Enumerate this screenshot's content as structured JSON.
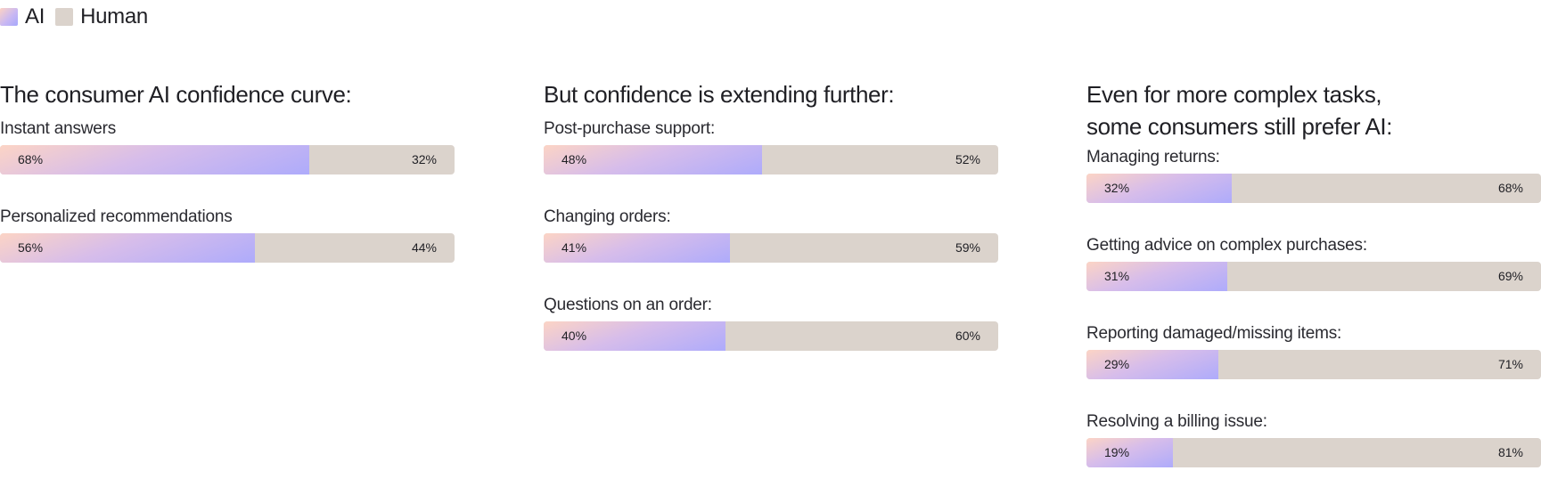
{
  "legend": {
    "ai_label": "AI",
    "human_label": "Human",
    "ai_color": "#b5aaf7",
    "human_color": "#dbd3cc"
  },
  "chart_data": [
    {
      "type": "bar",
      "title": "The consumer AI confidence curve:",
      "categories": [
        "Instant answers",
        "Personalized recommendations"
      ],
      "series": [
        {
          "name": "AI",
          "values": [
            68,
            56
          ],
          "labels": [
            "68%",
            "56%"
          ]
        },
        {
          "name": "Human",
          "values": [
            32,
            44
          ],
          "labels": [
            "32%",
            "44%"
          ]
        }
      ],
      "ylim": [
        0,
        100
      ]
    },
    {
      "type": "bar",
      "title": "But confidence is extending further:",
      "categories": [
        "Post-purchase support:",
        "Changing orders:",
        "Questions on an order:"
      ],
      "series": [
        {
          "name": "AI",
          "values": [
            48,
            41,
            40
          ],
          "labels": [
            "48%",
            "41%",
            "40%"
          ]
        },
        {
          "name": "Human",
          "values": [
            52,
            59,
            60
          ],
          "labels": [
            "52%",
            "59%",
            "60%"
          ]
        }
      ],
      "ylim": [
        0,
        100
      ]
    },
    {
      "type": "bar",
      "title": "Even for more complex tasks,\nsome consumers still prefer AI:",
      "categories": [
        "Managing returns:",
        "Getting advice on complex purchases:",
        "Reporting damaged/missing items:",
        "Resolving a billing issue:"
      ],
      "series": [
        {
          "name": "AI",
          "values": [
            32,
            31,
            29,
            19
          ],
          "labels": [
            "32%",
            "31%",
            "29%",
            "19%"
          ]
        },
        {
          "name": "Human",
          "values": [
            68,
            69,
            71,
            81
          ],
          "labels": [
            "68%",
            "69%",
            "71%",
            "81%"
          ]
        }
      ],
      "ylim": [
        0,
        100
      ]
    }
  ]
}
